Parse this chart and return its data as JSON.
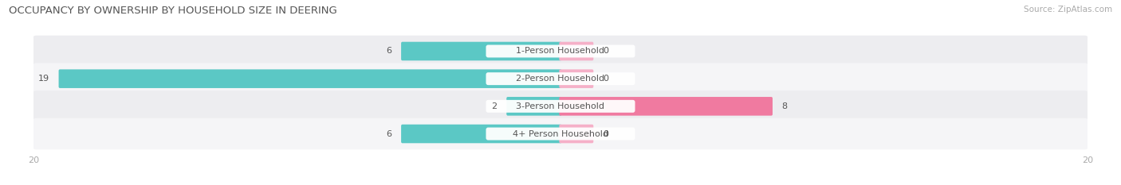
{
  "title": "OCCUPANCY BY OWNERSHIP BY HOUSEHOLD SIZE IN DEERING",
  "source": "Source: ZipAtlas.com",
  "categories": [
    "1-Person Household",
    "2-Person Household",
    "3-Person Household",
    "4+ Person Household"
  ],
  "owner_values": [
    6,
    19,
    2,
    6
  ],
  "renter_values": [
    0,
    0,
    8,
    0
  ],
  "xlim": 20,
  "owner_color": "#5bc8c5",
  "renter_color": "#f07aa0",
  "renter_stub_color": "#f5b0c8",
  "row_bg_even": "#ededf0",
  "row_bg_odd": "#f5f5f7",
  "title_color": "#555555",
  "source_color": "#aaaaaa",
  "label_color": "#555555",
  "value_color": "#555555",
  "tick_color": "#aaaaaa",
  "title_fontsize": 9.5,
  "source_fontsize": 7.5,
  "bar_label_fontsize": 8,
  "cat_label_fontsize": 8,
  "tick_fontsize": 8,
  "legend_fontsize": 8
}
